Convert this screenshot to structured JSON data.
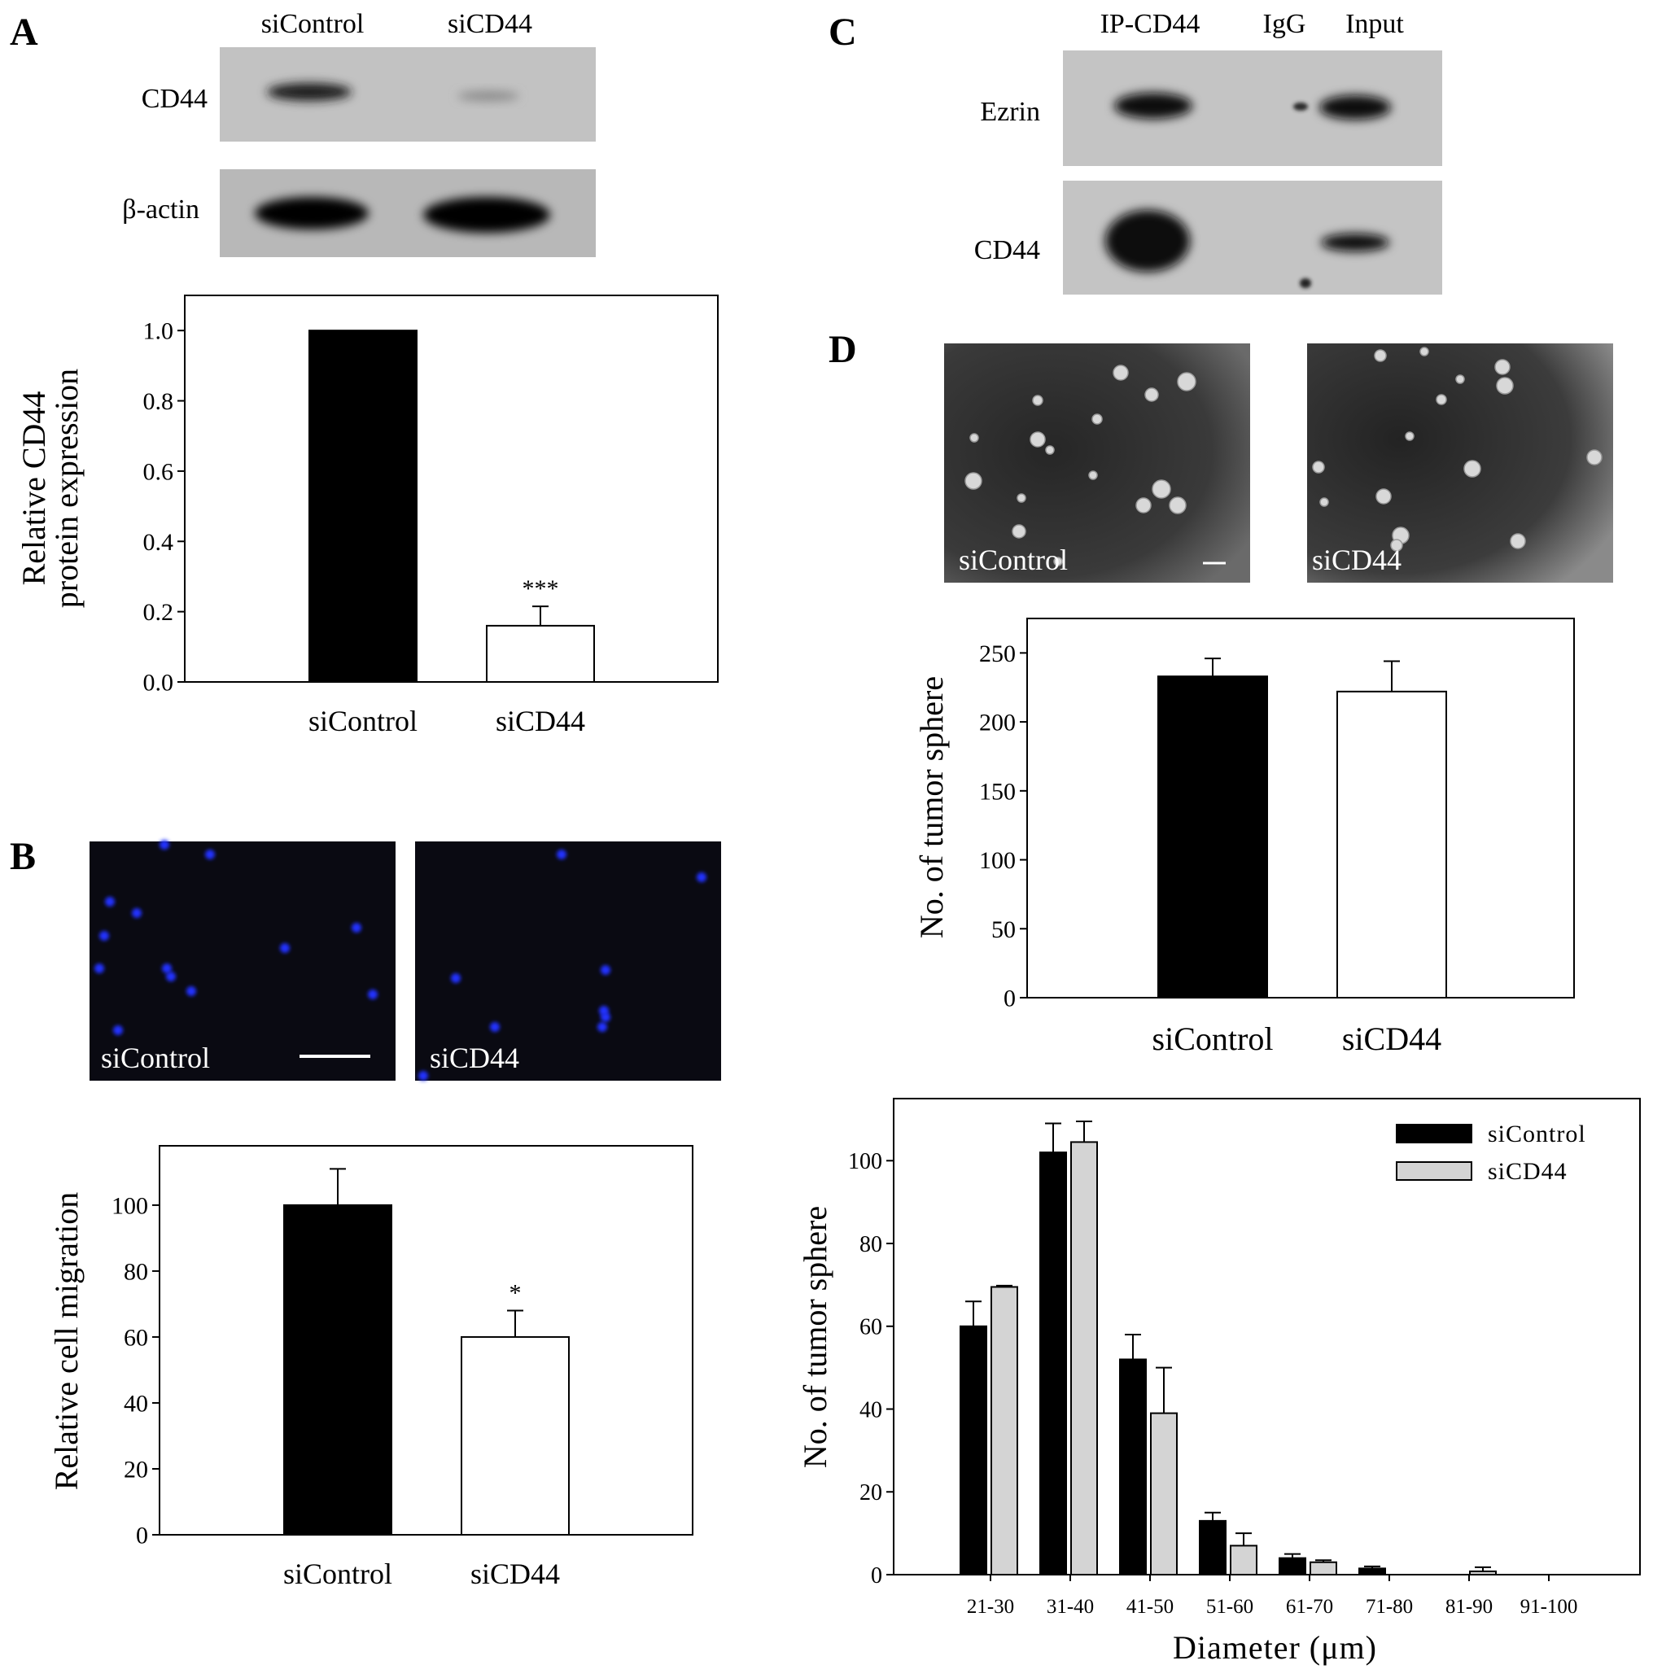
{
  "panels": {
    "A": {
      "letter": "A",
      "blot": {
        "lane_labels": [
          "siControl",
          "siCD44"
        ],
        "row_labels": [
          "CD44",
          "β-actin"
        ]
      }
    },
    "B": {
      "letter": "B",
      "images": {
        "left_caption": "siControl",
        "right_caption": "siCD44"
      }
    },
    "C": {
      "letter": "C",
      "blot": {
        "lane_labels": [
          "IP-CD44",
          "IgG",
          "Input"
        ],
        "row_labels": [
          "Ezrin",
          "CD44"
        ]
      }
    },
    "D": {
      "letter": "D",
      "images": {
        "left_caption": "siControl",
        "right_caption": "siCD44"
      }
    }
  },
  "colors": {
    "black_bar": "#000000",
    "white_bar": "#ffffff",
    "gray_bar": "#d4d4d4",
    "blot_bg": "#b8b8b8",
    "micro_dark": "#0a0a12",
    "nuclei": "#2030ff",
    "sphere_bg": "#3c3c3c"
  },
  "chart_data": [
    {
      "id": "A",
      "type": "bar",
      "categories": [
        "siControl",
        "siCD44"
      ],
      "values": [
        1.0,
        0.16
      ],
      "errors": [
        0,
        0.055
      ],
      "bar_colors": [
        "#000000",
        "#ffffff"
      ],
      "significance": [
        "",
        "***"
      ],
      "ylabel": [
        "Relative CD44",
        "protein expression"
      ],
      "ylim": [
        0,
        1.1
      ],
      "yticks": [
        "0.0",
        "0.2",
        "0.4",
        "0.6",
        "0.8",
        "1.0"
      ],
      "ytick_values": [
        0,
        0.2,
        0.4,
        0.6,
        0.8,
        1.0
      ],
      "grid": false
    },
    {
      "id": "B",
      "type": "bar",
      "categories": [
        "siControl",
        "siCD44"
      ],
      "values": [
        100,
        60
      ],
      "errors": [
        11,
        8
      ],
      "bar_colors": [
        "#000000",
        "#ffffff"
      ],
      "significance": [
        "",
        "*"
      ],
      "ylabel": [
        "Relative cell migration"
      ],
      "ylim": [
        0,
        118
      ],
      "yticks": [
        "0",
        "20",
        "40",
        "60",
        "80",
        "100"
      ],
      "ytick_values": [
        0,
        20,
        40,
        60,
        80,
        100
      ],
      "grid": false
    },
    {
      "id": "D1",
      "type": "bar",
      "categories": [
        "siControl",
        "siCD44"
      ],
      "values": [
        233,
        222
      ],
      "errors": [
        13,
        22
      ],
      "bar_colors": [
        "#000000",
        "#ffffff"
      ],
      "significance": [
        "",
        ""
      ],
      "ylabel": [
        "No. of tumor sphere"
      ],
      "ylim": [
        0,
        275
      ],
      "yticks": [
        "0",
        "50",
        "100",
        "150",
        "200",
        "250"
      ],
      "ytick_values": [
        0,
        50,
        100,
        150,
        200,
        250
      ],
      "grid": false
    },
    {
      "id": "D2",
      "type": "bar",
      "categories": [
        "21-30",
        "31-40",
        "41-50",
        "51-60",
        "61-70",
        "71-80",
        "81-90",
        "91-100"
      ],
      "series": [
        {
          "name": "siControl",
          "color": "#000000",
          "values": [
            60,
            102,
            52,
            13,
            4,
            1.5,
            0,
            0
          ],
          "errors": [
            6,
            7,
            6,
            2,
            1,
            0.5,
            0,
            0
          ]
        },
        {
          "name": "siCD44",
          "color": "#d4d4d4",
          "values": [
            69.5,
            104.5,
            39,
            7,
            3,
            0,
            0.8,
            0
          ],
          "errors": [
            0.3,
            5,
            11,
            3,
            0.5,
            0,
            1,
            0
          ]
        }
      ],
      "xlabel": "Diameter (μm)",
      "ylabel": [
        "No. of tumor sphere"
      ],
      "ylim": [
        0,
        115
      ],
      "yticks": [
        "0",
        "20",
        "40",
        "60",
        "80",
        "100"
      ],
      "ytick_values": [
        0,
        20,
        40,
        60,
        80,
        100
      ],
      "legend_position": "top-right",
      "grid": false
    }
  ]
}
